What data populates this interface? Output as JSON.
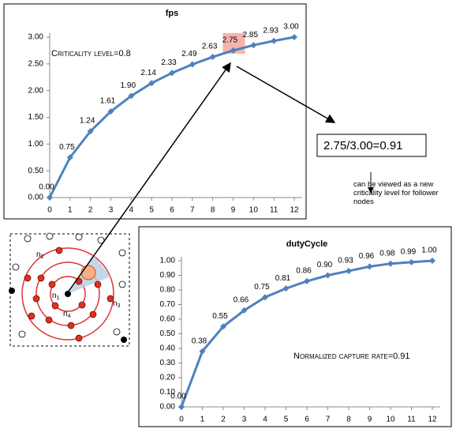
{
  "chart_data": [
    {
      "type": "line",
      "title": "fps",
      "annotation": "Criticality level=0.8",
      "x": [
        0,
        1,
        2,
        3,
        4,
        5,
        6,
        7,
        8,
        9,
        10,
        11,
        12
      ],
      "values": [
        0,
        0.75,
        1.24,
        1.61,
        1.9,
        2.14,
        2.33,
        2.49,
        2.63,
        2.75,
        2.85,
        2.93,
        3.0
      ],
      "value_labels": [
        "0.00",
        "0.75",
        "1.24",
        "1.61",
        "1.90",
        "2.14",
        "2.33",
        "2.49",
        "2.63",
        "2.75",
        "2.85",
        "2.93",
        "3.00"
      ],
      "highlight_index": 9,
      "color": "#4f81bd",
      "xlim": [
        0,
        12
      ],
      "ylim": [
        0,
        3
      ],
      "xticks": [
        0,
        1,
        2,
        3,
        4,
        5,
        6,
        7,
        8,
        9,
        10,
        11,
        12
      ],
      "yticks": [
        {
          "value": 0,
          "label": "0.00"
        },
        {
          "value": 0.5,
          "label": "0.50"
        },
        {
          "value": 1,
          "label": "1.00"
        },
        {
          "value": 1.5,
          "label": "1.50"
        },
        {
          "value": 2,
          "label": "2.00"
        },
        {
          "value": 2.5,
          "label": "2.50"
        },
        {
          "value": 3,
          "label": "3.00"
        }
      ],
      "grid": false
    },
    {
      "type": "line",
      "title": "dutyCycle",
      "annotation": "Normalized capture rate=0.91",
      "x": [
        0,
        1,
        2,
        3,
        4,
        5,
        6,
        7,
        8,
        9,
        10,
        11,
        12
      ],
      "values": [
        0,
        0.38,
        0.55,
        0.66,
        0.75,
        0.81,
        0.86,
        0.9,
        0.93,
        0.96,
        0.98,
        0.99,
        1.0
      ],
      "value_labels": [
        "0.00",
        "0.38",
        "0.55",
        "0.66",
        "0.75",
        "0.81",
        "0.86",
        "0.90",
        "0.93",
        "0.96",
        "0.98",
        "0.99",
        "1.00"
      ],
      "color": "#4f81bd",
      "xlim": [
        0,
        12
      ],
      "ylim": [
        0,
        1
      ],
      "xticks": [
        0,
        1,
        2,
        3,
        4,
        5,
        6,
        7,
        8,
        9,
        10,
        11,
        12
      ],
      "yticks": [
        {
          "value": 0,
          "label": "0.00"
        },
        {
          "value": 0.1,
          "label": "0.10"
        },
        {
          "value": 0.2,
          "label": "0.20"
        },
        {
          "value": 0.3,
          "label": "0.30"
        },
        {
          "value": 0.4,
          "label": "0.40"
        },
        {
          "value": 0.5,
          "label": "0.50"
        },
        {
          "value": 0.6,
          "label": "0.60"
        },
        {
          "value": 0.7,
          "label": "0.70"
        },
        {
          "value": 0.8,
          "label": "0.80"
        },
        {
          "value": 0.9,
          "label": "0.90"
        },
        {
          "value": 1,
          "label": "1.00"
        }
      ],
      "grid": false
    }
  ],
  "ratio_box": "2.75/3.00=0.91",
  "note": "can be viewed as a new criticality level for follower nodes",
  "nodes": [
    {
      "base": "n",
      "sub": "1"
    },
    {
      "base": "n",
      "sub": "2"
    },
    {
      "base": "n",
      "sub": "3"
    },
    {
      "base": "n",
      "sub": "4"
    }
  ]
}
